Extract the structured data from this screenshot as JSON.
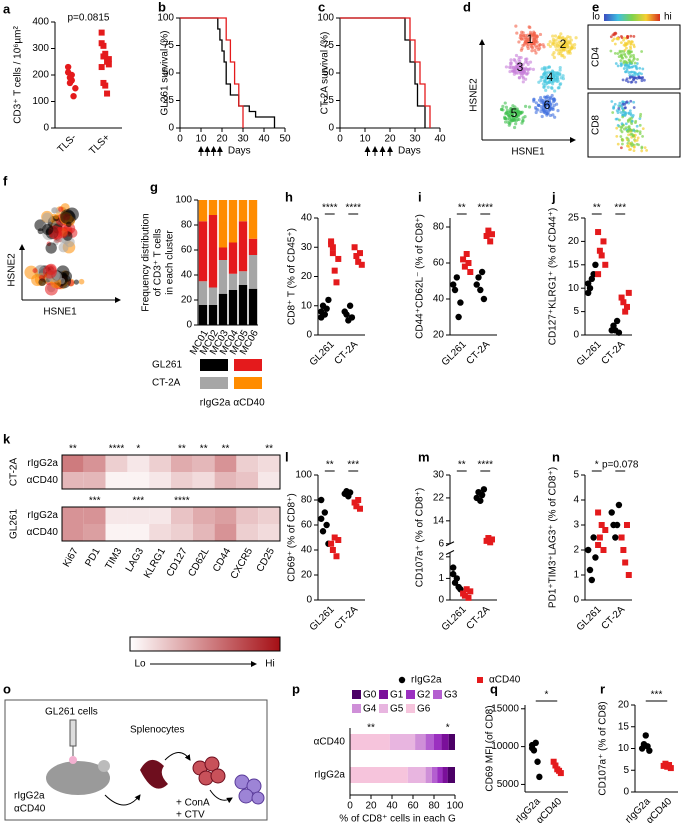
{
  "chart_data": [
    {
      "type": "dot",
      "label": "a",
      "y_label": "CD3⁺ T cells / 10⁶µm²",
      "categories": [
        "TLS-",
        "TLS+"
      ],
      "annotation": "p=0.0815",
      "ylim": [
        0,
        400
      ],
      "yticks": [
        0,
        100,
        200,
        300,
        400
      ],
      "series": [
        {
          "color": "#e41a1c",
          "marker": "circle",
          "values": [
            [
              210,
              170,
              200,
              120,
              150,
              230,
              190,
              180
            ],
            null
          ]
        },
        {
          "color": "#e41a1c",
          "marker": "square",
          "values": [
            null,
            [
              360,
              310,
              280,
              250,
              260,
              230,
              170,
              160,
              130,
              240,
              320,
              270
            ]
          ]
        }
      ]
    },
    {
      "type": "survival",
      "label": "b",
      "y_label": "GL261 survival (%)",
      "x_label": "Days",
      "xlim": [
        0,
        50
      ],
      "xticks": [
        0,
        10,
        20,
        30,
        40,
        50
      ],
      "ylim": [
        0,
        100
      ],
      "yticks": [
        0,
        25,
        50,
        75,
        100
      ],
      "treatment_days": [
        10,
        13,
        16,
        19
      ],
      "series": [
        {
          "color": "#000000",
          "x": [
            0,
            16,
            18,
            19,
            20,
            21,
            22,
            24,
            28,
            33,
            36,
            45
          ],
          "values": [
            100,
            100,
            90,
            80,
            70,
            60,
            40,
            30,
            20,
            15,
            10,
            0
          ]
        },
        {
          "color": "#e41a1c",
          "x": [
            0,
            20,
            22,
            24,
            26,
            28,
            30
          ],
          "values": [
            100,
            100,
            80,
            60,
            40,
            20,
            0
          ]
        }
      ]
    },
    {
      "type": "survival",
      "label": "c",
      "y_label": "CT-2A survival (%)",
      "x_label": "Days",
      "xlim": [
        0,
        40
      ],
      "xticks": [
        0,
        10,
        20,
        30,
        40
      ],
      "ylim": [
        0,
        100
      ],
      "yticks": [
        0,
        25,
        50,
        75,
        100
      ],
      "treatment_days": [
        11,
        14,
        17,
        20
      ],
      "series": [
        {
          "color": "#000000",
          "x": [
            0,
            24,
            26,
            28,
            30,
            31,
            34
          ],
          "values": [
            100,
            100,
            80,
            60,
            40,
            20,
            0
          ]
        },
        {
          "color": "#e41a1c",
          "x": [
            0,
            26,
            28,
            30,
            32,
            34,
            36
          ],
          "values": [
            100,
            100,
            80,
            60,
            40,
            20,
            0
          ]
        }
      ]
    },
    {
      "type": "clusters",
      "label": "d",
      "x_label": "HSNE1",
      "y_label": "HSNE2",
      "clusters": [
        {
          "label": "1",
          "color": "#f4634a"
        },
        {
          "label": "2",
          "color": "#f5d033"
        },
        {
          "label": "3",
          "color": "#c77dd8"
        },
        {
          "label": "4",
          "color": "#45c6e0"
        },
        {
          "label": "5",
          "color": "#3fbf4f"
        },
        {
          "label": "6",
          "color": "#3f6fe0"
        }
      ]
    },
    {
      "type": "expression",
      "label": "e",
      "colorbar": [
        "lo",
        "hi"
      ],
      "panels": [
        "CD4",
        "CD8"
      ]
    },
    {
      "type": "bubbles",
      "label": "f",
      "x_label": "HSNE1",
      "y_label": "HSNE2"
    },
    {
      "type": "stacked-bar",
      "label": "g",
      "y_label": [
        "Frequency distribution",
        "of CD3⁺ T cells",
        "in each cluster"
      ],
      "categories": [
        "MC01",
        "MC02",
        "MC03",
        "MC04",
        "MC05",
        "MC06"
      ],
      "ylim": [
        0,
        100
      ],
      "yticks": [
        0,
        20,
        40,
        60,
        80,
        100
      ],
      "legend": {
        "rows": [
          "GL261",
          "CT-2A"
        ],
        "columns": [
          "rIgG2a",
          "αCD40"
        ]
      },
      "series": [
        {
          "color": "#000000",
          "values": [
            16,
            16,
            25,
            28,
            32,
            29
          ]
        },
        {
          "color": "#a6a6a6",
          "values": [
            19,
            14,
            27,
            13,
            11,
            27
          ]
        },
        {
          "color": "#e41a1c",
          "values": [
            48,
            58,
            10,
            25,
            40,
            13
          ]
        },
        {
          "color": "#ff8c00",
          "values": [
            17,
            12,
            38,
            34,
            17,
            31
          ]
        }
      ]
    },
    {
      "type": "dot",
      "label": "h",
      "y_label": "CD8⁺ T (% of CD45⁺)",
      "categories": [
        "GL261",
        "CT-2A"
      ],
      "significance": [
        "****",
        "****"
      ],
      "ylim": [
        0,
        40
      ],
      "yticks": [
        0,
        10,
        20,
        30,
        40
      ],
      "series": [
        {
          "color": "#000000",
          "marker": "circle",
          "values": [
            [
              8,
              10,
              7,
              9,
              12,
              6
            ],
            [
              8,
              7,
              5,
              10,
              6
            ]
          ]
        },
        {
          "color": "#e41a1c",
          "marker": "square",
          "values": [
            [
              32,
              30,
              22,
              18,
              26,
              31,
              28
            ],
            [
              30,
              27,
              25,
              28,
              24
            ]
          ]
        }
      ]
    },
    {
      "type": "dot",
      "label": "i",
      "y_label": "CD44⁺CD62L⁻ (% of CD8⁺)",
      "categories": [
        "GL261",
        "CT-2A"
      ],
      "significance": [
        "**",
        "****"
      ],
      "ylim": [
        20,
        85
      ],
      "yticks": [
        20,
        40,
        60,
        80
      ],
      "series": [
        {
          "color": "#000000",
          "marker": "circle",
          "values": [
            [
              48,
              45,
              52,
              30,
              38
            ],
            [
              48,
              52,
              45,
              55,
              40
            ]
          ]
        },
        {
          "color": "#e41a1c",
          "marker": "square",
          "values": [
            [
              62,
              58,
              65,
              60,
              55
            ],
            [
              75,
              78,
              72,
              76
            ]
          ]
        }
      ]
    },
    {
      "type": "dot",
      "label": "j",
      "y_label": "CD127⁺KLRG1⁺ (% of CD44⁺)",
      "categories": [
        "GL261",
        "CT-2A"
      ],
      "significance": [
        "**",
        "***"
      ],
      "ylim": [
        0,
        25
      ],
      "yticks": [
        0,
        5,
        10,
        15,
        20,
        25
      ],
      "series": [
        {
          "color": "#000000",
          "marker": "circle",
          "values": [
            [
              11,
              10,
              12,
              13,
              15,
              9
            ],
            [
              1,
              2,
              1,
              3,
              0.5
            ]
          ]
        },
        {
          "color": "#e41a1c",
          "marker": "square",
          "values": [
            [
              22,
              18,
              17,
              20,
              15,
              13
            ],
            [
              8,
              7,
              5,
              6,
              9
            ]
          ]
        }
      ]
    },
    {
      "type": "heatmap",
      "label": "k",
      "columns": [
        "Ki67",
        "PD1",
        "TIM3",
        "LAG3",
        "KLRG1",
        "CD127",
        "CD62L",
        "CD44",
        "CXCR5",
        "CD25"
      ],
      "zlim": [
        0,
        1
      ],
      "colorbar": [
        "Lo",
        "Hi"
      ],
      "low_color": "#ffffff",
      "high_color": "#a50f15",
      "groups": [
        {
          "name": "CT-2A",
          "rows": [
            "rIgG2a",
            "αCD40"
          ],
          "significance": [
            "**",
            null,
            "****",
            "*",
            null,
            "**",
            "**",
            "**",
            null,
            "**"
          ],
          "values": [
            [
              0.55,
              0.45,
              0.2,
              0.1,
              0.2,
              0.35,
              0.3,
              0.45,
              0.2,
              0.15
            ],
            [
              0.3,
              0.3,
              0.05,
              0.05,
              0.1,
              0.2,
              0.15,
              0.3,
              0.25,
              0.1
            ]
          ]
        },
        {
          "name": "GL261",
          "rows": [
            "rIgG2a",
            "αCD40"
          ],
          "significance": [
            null,
            "***",
            null,
            "***",
            null,
            "****",
            null,
            null,
            null,
            null
          ],
          "values": [
            [
              0.45,
              0.45,
              0.1,
              0.1,
              0.1,
              0.25,
              0.35,
              0.4,
              0.25,
              0.2
            ],
            [
              0.45,
              0.4,
              0.05,
              0.05,
              0.15,
              0.2,
              0.3,
              0.45,
              0.2,
              0.15
            ]
          ]
        }
      ]
    },
    {
      "type": "dot",
      "label": "l",
      "y_label": "CD69⁺ (% of CD8⁺)",
      "categories": [
        "GL261",
        "CT-2A"
      ],
      "significance": [
        "**",
        "***"
      ],
      "ylim": [
        0,
        100
      ],
      "yticks": [
        0,
        20,
        40,
        60,
        80,
        100
      ],
      "series": [
        {
          "color": "#000000",
          "marker": "circle",
          "values": [
            [
              65,
              55,
              70,
              60,
              45,
              80
            ],
            [
              85,
              87,
              83,
              86
            ]
          ]
        },
        {
          "color": "#e41a1c",
          "marker": "square",
          "values": [
            [
              45,
              40,
              50,
              35,
              48
            ],
            [
              78,
              75,
              80,
              73
            ]
          ]
        }
      ]
    },
    {
      "type": "dot",
      "label": "m",
      "y_label": "CD107a⁺ (% of CD8⁺)",
      "categories": [
        "GL261",
        "CT-2A"
      ],
      "significance": [
        "**",
        "****"
      ],
      "segments": [
        {
          "ylim": [
            0,
            2.2
          ],
          "yticks": [
            0,
            1,
            2
          ]
        },
        {
          "ylim": [
            6,
            30
          ],
          "yticks": [
            6,
            14,
            22,
            30
          ]
        }
      ],
      "series": [
        {
          "color": "#000000",
          "marker": "circle",
          "values": [
            [
              1.2,
              0.8,
              1.0,
              0.6,
              0.5,
              1.5
            ],
            [
              22,
              24,
              21,
              23,
              25
            ]
          ]
        },
        {
          "color": "#e41a1c",
          "marker": "square",
          "values": [
            [
              0.3,
              0.2,
              0.5,
              0.1,
              0.4
            ],
            [
              7,
              8,
              6.5,
              7.5
            ]
          ]
        }
      ]
    },
    {
      "type": "dot",
      "label": "n",
      "y_label": "PD1⁺TIM3⁺LAG3⁺ (% of CD8⁺)",
      "categories": [
        "GL261",
        "CT-2A"
      ],
      "significance": [
        "*",
        "p=0.078"
      ],
      "ylim": [
        0,
        5
      ],
      "yticks": [
        0,
        1,
        2,
        3,
        4,
        5
      ],
      "legend": [
        {
          "name": "rIgG2a",
          "color": "#000000",
          "marker": "circle"
        },
        {
          "name": "αCD40",
          "color": "#e41a1c",
          "marker": "square"
        }
      ],
      "series": [
        {
          "color": "#000000",
          "marker": "circle",
          "values": [
            [
              2,
              1.2,
              0.8,
              2.5,
              1.7
            ],
            [
              3.5,
              3,
              2.5,
              3,
              3.8
            ]
          ]
        },
        {
          "color": "#e41a1c",
          "marker": "square",
          "values": [
            [
              3.5,
              2.5,
              3,
              2,
              2.8,
              2.2
            ],
            [
              2.5,
              2,
              1.5,
              3,
              1
            ]
          ]
        }
      ]
    },
    {
      "type": "hbar-stacked",
      "label": "p",
      "x_label": "% of CD8⁺ cells in each G",
      "categories": [
        "αCD40",
        "rIgG2a"
      ],
      "annotations": [
        "**",
        "*"
      ],
      "xlim": [
        0,
        100
      ],
      "xticks": [
        0,
        20,
        40,
        60,
        80,
        100
      ],
      "series": [
        {
          "name": "G0",
          "color": "#4b0066",
          "values": [
            6,
            7
          ]
        },
        {
          "name": "G1",
          "color": "#7a0f9a",
          "values": [
            7,
            5
          ]
        },
        {
          "name": "G2",
          "color": "#9b30c0",
          "values": [
            7,
            5
          ]
        },
        {
          "name": "G3",
          "color": "#b45fd0",
          "values": [
            8,
            5
          ]
        },
        {
          "name": "G4",
          "color": "#cf8fd8",
          "values": [
            10,
            6
          ]
        },
        {
          "name": "G5",
          "color": "#e8b5e0",
          "values": [
            24,
            17
          ]
        },
        {
          "name": "G6",
          "color": "#f6c4dc",
          "values": [
            38,
            55
          ]
        }
      ]
    },
    {
      "type": "dot",
      "label": "q",
      "y_label": "CD69 MFI (of CD8)",
      "categories": [
        "rIgG2a",
        "αCD40"
      ],
      "comparison": "*",
      "ylim": [
        4000,
        15500
      ],
      "yticks": [
        5000,
        10000,
        15000
      ],
      "series": [
        {
          "color": "#000000",
          "marker": "circle",
          "values": [
            [
              10200,
              9500,
              10500,
              8000,
              6000,
              9800
            ],
            null
          ]
        },
        {
          "color": "#e41a1c",
          "marker": "square",
          "values": [
            null,
            [
              8000,
              7500,
              7000,
              6800,
              6500
            ]
          ]
        }
      ]
    },
    {
      "type": "dot",
      "label": "r",
      "y_label": "CD107a⁺ (% of CD8)",
      "categories": [
        "rIgG2a",
        "αCD40"
      ],
      "comparison": "***",
      "ylim": [
        0,
        20
      ],
      "yticks": [
        0,
        5,
        10,
        15,
        20
      ],
      "series": [
        {
          "color": "#000000",
          "marker": "circle",
          "values": [
            [
              10,
              11,
              13,
              10.5,
              9.5
            ],
            null
          ]
        },
        {
          "color": "#e41a1c",
          "marker": "square",
          "values": [
            null,
            [
              6,
              6.5,
              5.8,
              6.2,
              5.5
            ]
          ]
        }
      ]
    }
  ],
  "diagram": {
    "label": "o",
    "source": "GL261 cells",
    "harvest": "Splenocytes",
    "treatments": [
      "rIgG2a",
      "αCD40"
    ],
    "stimuli": [
      "+ ConA",
      "+ CTV"
    ]
  }
}
